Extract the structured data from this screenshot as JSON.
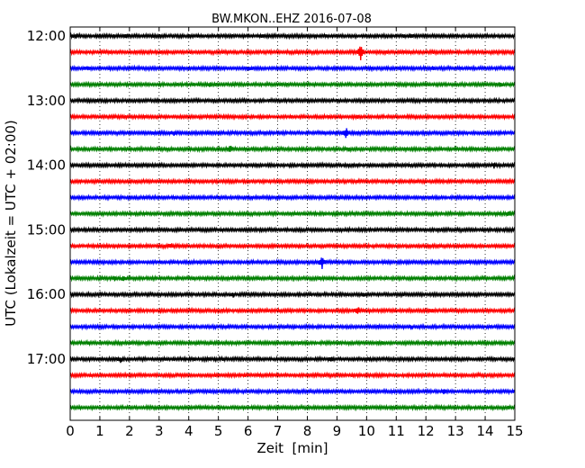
{
  "chart_data": {
    "type": "line",
    "title": "BW.MKON..EHZ 2016-07-08",
    "xlabel": "Zeit  [min]",
    "ylabel": "UTC (Lokalzeit = UTC + 02:00)",
    "xlim": [
      0,
      15
    ],
    "x_ticks": [
      0,
      1,
      2,
      3,
      4,
      5,
      6,
      7,
      8,
      9,
      10,
      11,
      12,
      13,
      14,
      15
    ],
    "y_tick_labels": [
      "12:00",
      "13:00",
      "14:00",
      "15:00",
      "16:00",
      "17:00"
    ],
    "grid": "vertical dotted",
    "colors": [
      "#000000",
      "#ff0000",
      "#0000ff",
      "#008000"
    ],
    "traces": [
      {
        "start": "12:00",
        "color": "#000000",
        "events": [
          {
            "t": 0.2,
            "a": 0.5
          },
          {
            "t": 1.9,
            "a": 0.5
          },
          {
            "t": 6.5,
            "a": 0.4
          },
          {
            "t": 11.5,
            "a": 0.4
          }
        ]
      },
      {
        "start": "12:15",
        "color": "#ff0000",
        "events": [
          {
            "t": 9.8,
            "a": 3.0
          }
        ]
      },
      {
        "start": "12:30",
        "color": "#0000ff",
        "events": [
          {
            "t": 0.6,
            "a": 0.4
          },
          {
            "t": 6.0,
            "a": 0.4
          },
          {
            "t": 12.2,
            "a": 0.4
          }
        ]
      },
      {
        "start": "12:45",
        "color": "#008000",
        "events": [
          {
            "t": 4.7,
            "a": 0.5
          },
          {
            "t": 14.5,
            "a": 0.4
          }
        ]
      },
      {
        "start": "13:00",
        "color": "#000000",
        "events": [
          {
            "t": 3.5,
            "a": 0.4
          }
        ]
      },
      {
        "start": "13:15",
        "color": "#ff0000",
        "events": [
          {
            "t": 9.7,
            "a": 0.5
          }
        ]
      },
      {
        "start": "13:30",
        "color": "#0000ff",
        "events": [
          {
            "t": 3.5,
            "a": 0.6
          },
          {
            "t": 9.3,
            "a": 1.9
          }
        ]
      },
      {
        "start": "13:45",
        "color": "#008000",
        "events": [
          {
            "t": 5.4,
            "a": 1.0
          },
          {
            "t": 9.4,
            "a": 0.6
          }
        ]
      },
      {
        "start": "14:00",
        "color": "#000000",
        "events": [
          {
            "t": 14.3,
            "a": 0.6
          }
        ]
      },
      {
        "start": "14:15",
        "color": "#ff0000",
        "events": [
          {
            "t": 8.0,
            "a": 0.3
          }
        ]
      },
      {
        "start": "14:30",
        "color": "#0000ff",
        "events": []
      },
      {
        "start": "14:45",
        "color": "#008000",
        "events": [
          {
            "t": 14.8,
            "a": 0.7
          }
        ]
      },
      {
        "start": "15:00",
        "color": "#000000",
        "events": [
          {
            "t": 3.0,
            "a": 0.3
          }
        ]
      },
      {
        "start": "15:15",
        "color": "#ff0000",
        "events": [
          {
            "t": 3.4,
            "a": 0.7
          }
        ]
      },
      {
        "start": "15:30",
        "color": "#0000ff",
        "events": [
          {
            "t": 8.5,
            "a": 2.2
          }
        ]
      },
      {
        "start": "15:45",
        "color": "#008000",
        "events": [
          {
            "t": 1.5,
            "a": 0.6
          },
          {
            "t": 1.8,
            "a": 0.5
          }
        ]
      },
      {
        "start": "16:00",
        "color": "#000000",
        "events": [
          {
            "t": 5.5,
            "a": 0.6
          },
          {
            "t": 9.9,
            "a": 0.6
          }
        ]
      },
      {
        "start": "16:15",
        "color": "#ff0000",
        "events": [
          {
            "t": 9.7,
            "a": 1.2
          },
          {
            "t": 12.2,
            "a": 0.5
          }
        ]
      },
      {
        "start": "16:30",
        "color": "#0000ff",
        "events": [
          {
            "t": 11.5,
            "a": 0.4
          }
        ]
      },
      {
        "start": "16:45",
        "color": "#008000",
        "events": [
          {
            "t": 10.5,
            "a": 0.3
          }
        ]
      },
      {
        "start": "17:00",
        "color": "#000000",
        "events": [
          {
            "t": 1.7,
            "a": 0.7
          },
          {
            "t": 8.8,
            "a": 0.5
          }
        ]
      },
      {
        "start": "17:15",
        "color": "#ff0000",
        "events": []
      },
      {
        "start": "17:30",
        "color": "#0000ff",
        "events": [
          {
            "t": 12.6,
            "a": 0.6
          }
        ]
      },
      {
        "start": "17:45",
        "color": "#008000",
        "events": []
      }
    ]
  }
}
